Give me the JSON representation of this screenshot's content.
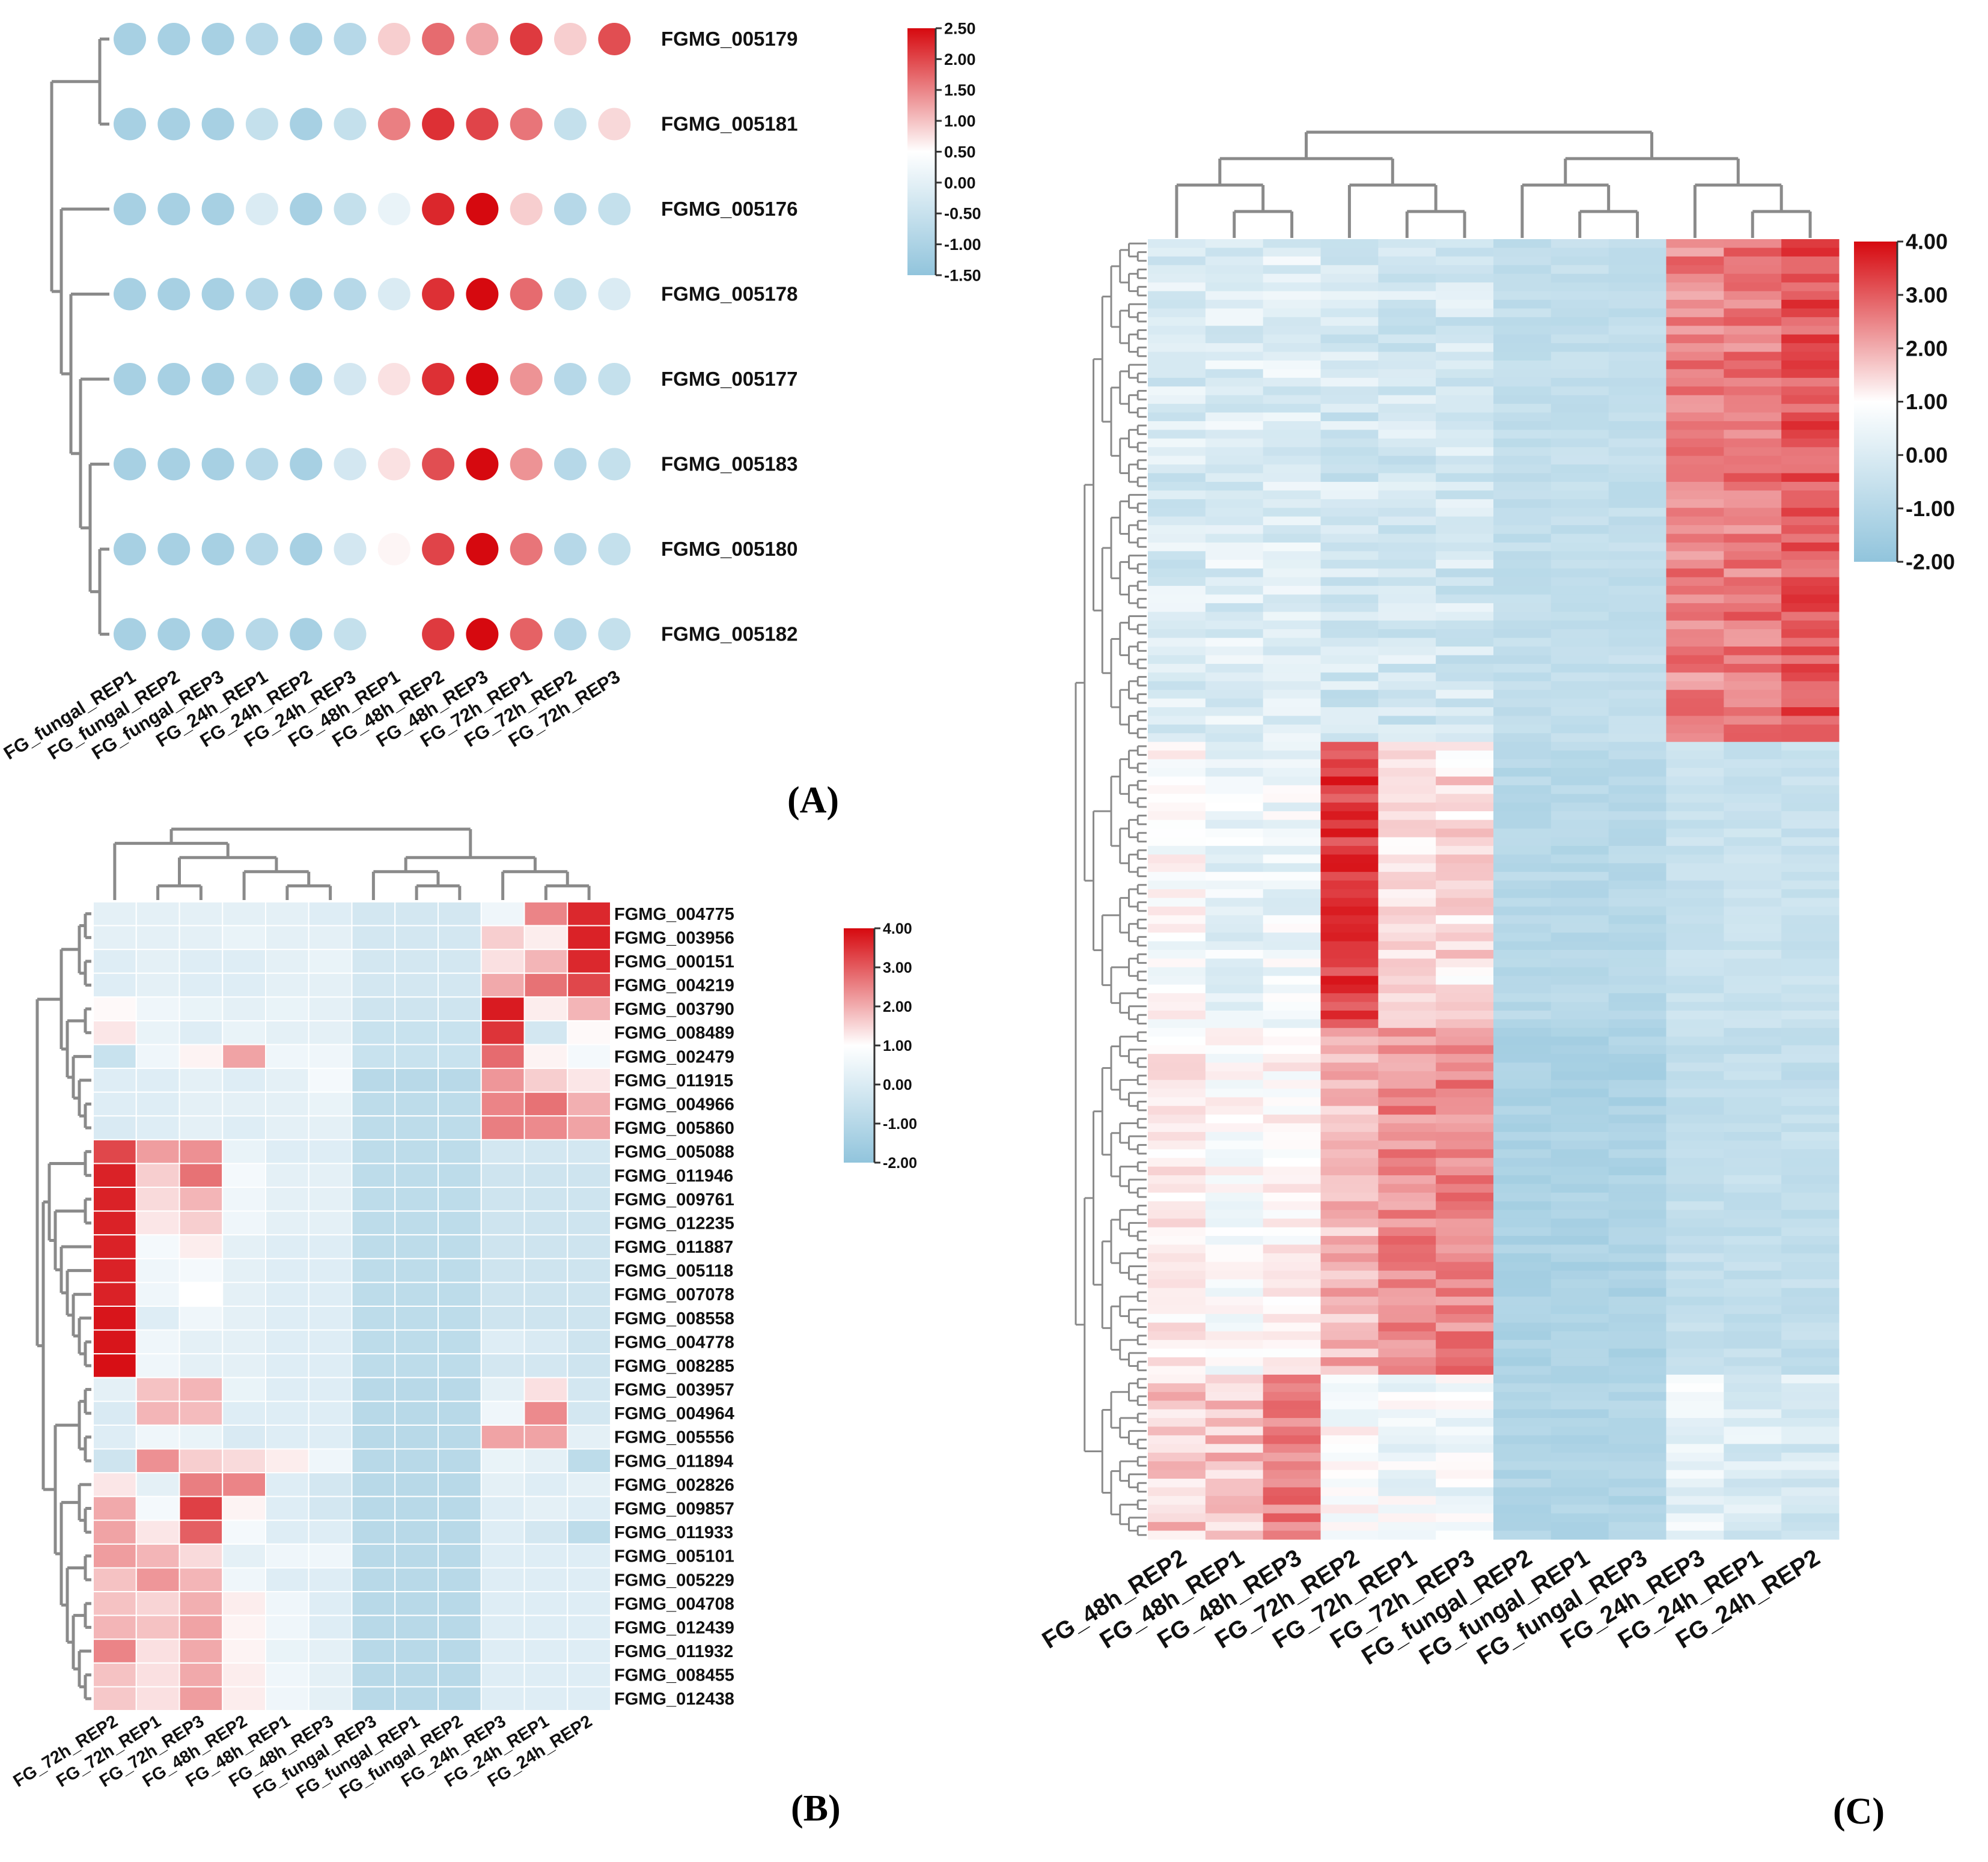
{
  "chart_data": [
    {
      "id": "A",
      "type": "heatmap",
      "panel_label": "(A)",
      "title": "",
      "style": "bubble",
      "columns": [
        "FG_fungal_REP1",
        "FG_fungal_REP2",
        "FG_fungal_REP3",
        "FG_24h_REP1",
        "FG_24h_REP2",
        "FG_24h_REP3",
        "FG_48h_REP1",
        "FG_48h_REP2",
        "FG_48h_REP3",
        "FG_72h_REP1",
        "FG_72h_REP2",
        "FG_72h_REP3"
      ],
      "rows": [
        "FGMG_005179",
        "FGMG_005181",
        "FGMG_005176",
        "FGMG_005178",
        "FGMG_005177",
        "FGMG_005183",
        "FGMG_005180",
        "FGMG_005182"
      ],
      "values": [
        [
          -1.2,
          -1.2,
          -1.2,
          -1.0,
          -1.2,
          -1.0,
          0.5,
          1.5,
          0.9,
          2.0,
          0.5,
          1.8
        ],
        [
          -1.2,
          -1.2,
          -1.2,
          -0.8,
          -1.2,
          -0.8,
          1.3,
          2.1,
          1.9,
          1.4,
          -0.8,
          0.4
        ],
        [
          -1.2,
          -1.2,
          -1.2,
          -0.5,
          -1.2,
          -0.8,
          -0.3,
          2.2,
          2.5,
          0.5,
          -1.0,
          -0.8
        ],
        [
          -1.2,
          -1.2,
          -1.2,
          -1.0,
          -1.2,
          -1.0,
          -0.5,
          2.1,
          2.5,
          1.5,
          -0.8,
          -0.5
        ],
        [
          -1.2,
          -1.2,
          -1.2,
          -0.8,
          -1.2,
          -0.6,
          0.3,
          2.1,
          2.5,
          1.1,
          -1.0,
          -0.8
        ],
        [
          -1.2,
          -1.2,
          -1.2,
          -1.0,
          -1.2,
          -0.6,
          0.3,
          1.8,
          2.5,
          1.1,
          -1.0,
          -0.8
        ],
        [
          -1.2,
          -1.2,
          -1.2,
          -1.0,
          -1.2,
          -0.6,
          0.1,
          1.9,
          2.5,
          1.4,
          -1.0,
          -0.8
        ],
        [
          -1.2,
          -1.2,
          -1.2,
          -1.0,
          -1.2,
          -0.8,
          0.0,
          2.0,
          2.5,
          1.6,
          -1.0,
          -0.8
        ]
      ],
      "colorbar": {
        "min": -1.5,
        "max": 2.5,
        "ticks": [
          "2.50",
          "2.00",
          "1.50",
          "1.00",
          "0.50",
          "0.00",
          "-0.50",
          "-1.00",
          "-1.50"
        ]
      }
    },
    {
      "id": "B",
      "type": "heatmap",
      "panel_label": "(B)",
      "title": "",
      "columns": [
        "FG_72h_REP2",
        "FG_72h_REP1",
        "FG_72h_REP3",
        "FG_48h_REP2",
        "FG_48h_REP1",
        "FG_48h_REP3",
        "FG_fungal_REP3",
        "FG_fungal_REP1",
        "FG_fungal_REP2",
        "FG_24h_REP3",
        "FG_24h_REP1",
        "FG_24h_REP2"
      ],
      "rows": [
        "FGMG_004775",
        "FGMG_003956",
        "FGMG_000151",
        "FGMG_004219",
        "FGMG_003790",
        "FGMG_008489",
        "FGMG_002479",
        "FGMG_011915",
        "FGMG_004966",
        "FGMG_005860",
        "FGMG_005088",
        "FGMG_011946",
        "FGMG_009761",
        "FGMG_012235",
        "FGMG_011887",
        "FGMG_005118",
        "FGMG_007078",
        "FGMG_008558",
        "FGMG_004778",
        "FGMG_008285",
        "FGMG_003957",
        "FGMG_004964",
        "FGMG_005556",
        "FGMG_011894",
        "FGMG_002826",
        "FGMG_009857",
        "FGMG_011933",
        "FGMG_005101",
        "FGMG_005229",
        "FGMG_004708",
        "FGMG_012439",
        "FGMG_011932",
        "FGMG_008455",
        "FGMG_012438"
      ],
      "values": [
        [
          -0.5,
          -0.5,
          -0.5,
          -0.5,
          -0.5,
          -0.6,
          -0.8,
          -0.8,
          -0.8,
          -0.3,
          2.0,
          3.5
        ],
        [
          -0.5,
          -0.5,
          -0.5,
          -0.4,
          -0.5,
          -0.5,
          -0.8,
          -0.8,
          -0.8,
          0.8,
          0.3,
          3.6
        ],
        [
          -0.6,
          -0.5,
          -0.6,
          -0.6,
          -0.5,
          -0.4,
          -0.8,
          -0.8,
          -0.8,
          0.5,
          1.2,
          3.5
        ],
        [
          -0.6,
          -0.5,
          -0.6,
          -0.6,
          -0.5,
          -0.5,
          -0.8,
          -0.8,
          -0.8,
          1.4,
          2.3,
          3.0
        ],
        [
          0.1,
          -0.3,
          -0.4,
          -0.5,
          -0.4,
          -0.5,
          -0.9,
          -0.9,
          -0.9,
          3.7,
          0.3,
          1.2
        ],
        [
          0.4,
          -0.4,
          -0.6,
          -0.4,
          -0.5,
          -0.5,
          -1.0,
          -1.0,
          -1.0,
          3.3,
          -0.8,
          0.1
        ],
        [
          -1.0,
          -0.3,
          0.2,
          1.5,
          -0.3,
          -0.3,
          -1.0,
          -1.0,
          -1.0,
          2.4,
          0.2,
          -0.2
        ],
        [
          -0.6,
          -0.6,
          -0.5,
          -0.6,
          -0.5,
          -0.2,
          -1.3,
          -1.3,
          -1.3,
          1.7,
          0.8,
          0.4
        ],
        [
          -0.6,
          -0.6,
          -0.5,
          -0.5,
          -0.5,
          -0.4,
          -1.2,
          -1.2,
          -1.2,
          2.0,
          2.3,
          1.3
        ],
        [
          -0.7,
          -0.6,
          -0.5,
          -0.6,
          -0.5,
          -0.5,
          -1.2,
          -1.2,
          -1.2,
          2.1,
          1.9,
          1.5
        ],
        [
          3.0,
          1.6,
          1.8,
          -0.4,
          -0.6,
          -0.6,
          -1.2,
          -1.2,
          -1.2,
          -0.8,
          -0.8,
          -0.8
        ],
        [
          3.6,
          0.8,
          2.3,
          -0.2,
          -0.5,
          -0.5,
          -1.2,
          -1.2,
          -1.2,
          -0.9,
          -0.9,
          -0.9
        ],
        [
          3.6,
          0.6,
          1.2,
          -0.3,
          -0.5,
          -0.5,
          -1.2,
          -1.2,
          -1.2,
          -0.9,
          -0.9,
          -0.9
        ],
        [
          3.6,
          0.4,
          0.8,
          -0.3,
          -0.5,
          -0.5,
          -1.2,
          -1.2,
          -1.2,
          -0.9,
          -0.9,
          -0.9
        ],
        [
          3.6,
          -0.2,
          0.3,
          -0.5,
          -0.6,
          -0.6,
          -1.2,
          -1.2,
          -1.2,
          -0.9,
          -0.9,
          -0.9
        ],
        [
          3.6,
          -0.3,
          -0.2,
          -0.5,
          -0.6,
          -0.6,
          -1.2,
          -1.2,
          -1.2,
          -0.9,
          -0.9,
          -0.9
        ],
        [
          3.6,
          -0.3,
          0.0,
          -0.5,
          -0.6,
          -0.6,
          -1.2,
          -1.2,
          -1.2,
          -0.9,
          -0.9,
          -0.9
        ],
        [
          3.8,
          -0.6,
          -0.3,
          -0.5,
          -0.6,
          -0.6,
          -1.2,
          -1.2,
          -1.2,
          -0.9,
          -0.9,
          -0.9
        ],
        [
          3.8,
          -0.3,
          -0.5,
          -0.5,
          -0.6,
          -0.6,
          -1.2,
          -1.2,
          -1.2,
          -0.6,
          -0.7,
          -0.9
        ],
        [
          3.9,
          -0.3,
          -0.5,
          -0.5,
          -0.6,
          -0.6,
          -1.2,
          -1.2,
          -1.2,
          -0.8,
          -0.8,
          -0.9
        ],
        [
          -0.5,
          1.0,
          1.2,
          -0.4,
          -0.6,
          -0.6,
          -1.3,
          -1.3,
          -1.3,
          -0.5,
          0.5,
          -0.8
        ],
        [
          -0.7,
          1.2,
          1.1,
          -0.6,
          -0.6,
          -0.6,
          -1.3,
          -1.3,
          -1.3,
          -0.3,
          1.9,
          -0.8
        ],
        [
          -0.6,
          -0.3,
          -0.4,
          -0.7,
          -0.6,
          -0.6,
          -1.3,
          -1.3,
          -1.3,
          1.5,
          1.5,
          -0.5
        ],
        [
          -0.9,
          1.8,
          0.8,
          0.6,
          0.3,
          -0.3,
          -1.3,
          -1.3,
          -1.3,
          -0.4,
          -0.5,
          -1.2
        ],
        [
          0.4,
          -0.5,
          2.1,
          2.0,
          -0.6,
          -0.8,
          -1.3,
          -1.3,
          -1.3,
          -0.5,
          -0.6,
          -0.5
        ],
        [
          1.4,
          -0.2,
          3.1,
          0.2,
          -0.6,
          -0.8,
          -1.3,
          -1.3,
          -1.3,
          -0.6,
          -0.5,
          -0.6
        ],
        [
          1.5,
          0.4,
          2.6,
          -0.2,
          -0.6,
          -0.6,
          -1.3,
          -1.3,
          -1.3,
          -0.6,
          -0.8,
          -1.2
        ],
        [
          1.6,
          1.2,
          0.6,
          -0.5,
          -0.3,
          -0.3,
          -1.3,
          -1.3,
          -1.3,
          -0.6,
          -0.6,
          -0.6
        ],
        [
          1.0,
          1.7,
          1.2,
          -0.3,
          -0.6,
          -0.6,
          -1.3,
          -1.3,
          -1.3,
          -0.6,
          -0.6,
          -0.6
        ],
        [
          1.0,
          0.7,
          1.3,
          0.3,
          -0.3,
          -0.6,
          -1.3,
          -1.3,
          -1.3,
          -0.6,
          -0.6,
          -0.6
        ],
        [
          1.2,
          1.0,
          1.5,
          0.2,
          -0.3,
          -0.6,
          -1.3,
          -1.3,
          -1.3,
          -0.6,
          -0.6,
          -0.6
        ],
        [
          2.0,
          0.5,
          1.4,
          0.2,
          -0.4,
          -0.5,
          -1.3,
          -1.3,
          -1.3,
          -0.6,
          -0.6,
          -0.6
        ],
        [
          1.0,
          0.5,
          1.4,
          0.3,
          -0.3,
          -0.5,
          -1.3,
          -1.3,
          -1.3,
          -0.6,
          -0.6,
          -0.6
        ],
        [
          0.9,
          0.5,
          1.6,
          0.3,
          -0.3,
          -0.5,
          -1.3,
          -1.3,
          -1.3,
          -0.6,
          -0.6,
          -0.6
        ]
      ],
      "colorbar": {
        "min": -2,
        "max": 4,
        "ticks": [
          "4.00",
          "3.00",
          "2.00",
          "1.00",
          "0.00",
          "-1.00",
          "-2.00"
        ]
      }
    },
    {
      "id": "C",
      "type": "heatmap",
      "panel_label": "(C)",
      "title": "",
      "columns": [
        "FG_48h_REP2",
        "FG_48h_REP1",
        "FG_48h_REP3",
        "FG_72h_REP2",
        "FG_72h_REP1",
        "FG_72h_REP3",
        "FG_fungal_REP2",
        "FG_fungal_REP1",
        "FG_fungal_REP3",
        "FG_24h_REP3",
        "FG_24h_REP1",
        "FG_24h_REP2"
      ],
      "n_rows": 150,
      "block_profiles": [
        {
          "name": "24h-high",
          "row_count": 58,
          "values": [
            -0.7,
            -0.6,
            -0.6,
            -0.8,
            -0.8,
            -0.8,
            -1.1,
            -1.1,
            -1.1,
            2.0,
            2.2,
            2.8
          ]
        },
        {
          "name": "72h_REP2-high",
          "row_count": 33,
          "values": [
            0.0,
            -0.4,
            -0.3,
            3.2,
            0.5,
            0.6,
            -1.3,
            -1.3,
            -1.3,
            -1.0,
            -1.0,
            -1.0
          ]
        },
        {
          "name": "72h-high",
          "row_count": 40,
          "values": [
            0.3,
            0.0,
            0.2,
            1.2,
            1.9,
            2.0,
            -1.5,
            -1.5,
            -1.5,
            -1.1,
            -1.1,
            -1.1
          ]
        },
        {
          "name": "48h-high",
          "row_count": 19,
          "values": [
            0.9,
            1.0,
            2.0,
            0.0,
            -0.2,
            -0.2,
            -1.4,
            -1.4,
            -1.4,
            -0.4,
            -0.6,
            -0.7
          ]
        }
      ],
      "colorbar": {
        "min": -2,
        "max": 4,
        "ticks": [
          "4.00",
          "3.00",
          "2.00",
          "1.00",
          "0.00",
          "-1.00",
          "-2.00"
        ]
      }
    }
  ]
}
